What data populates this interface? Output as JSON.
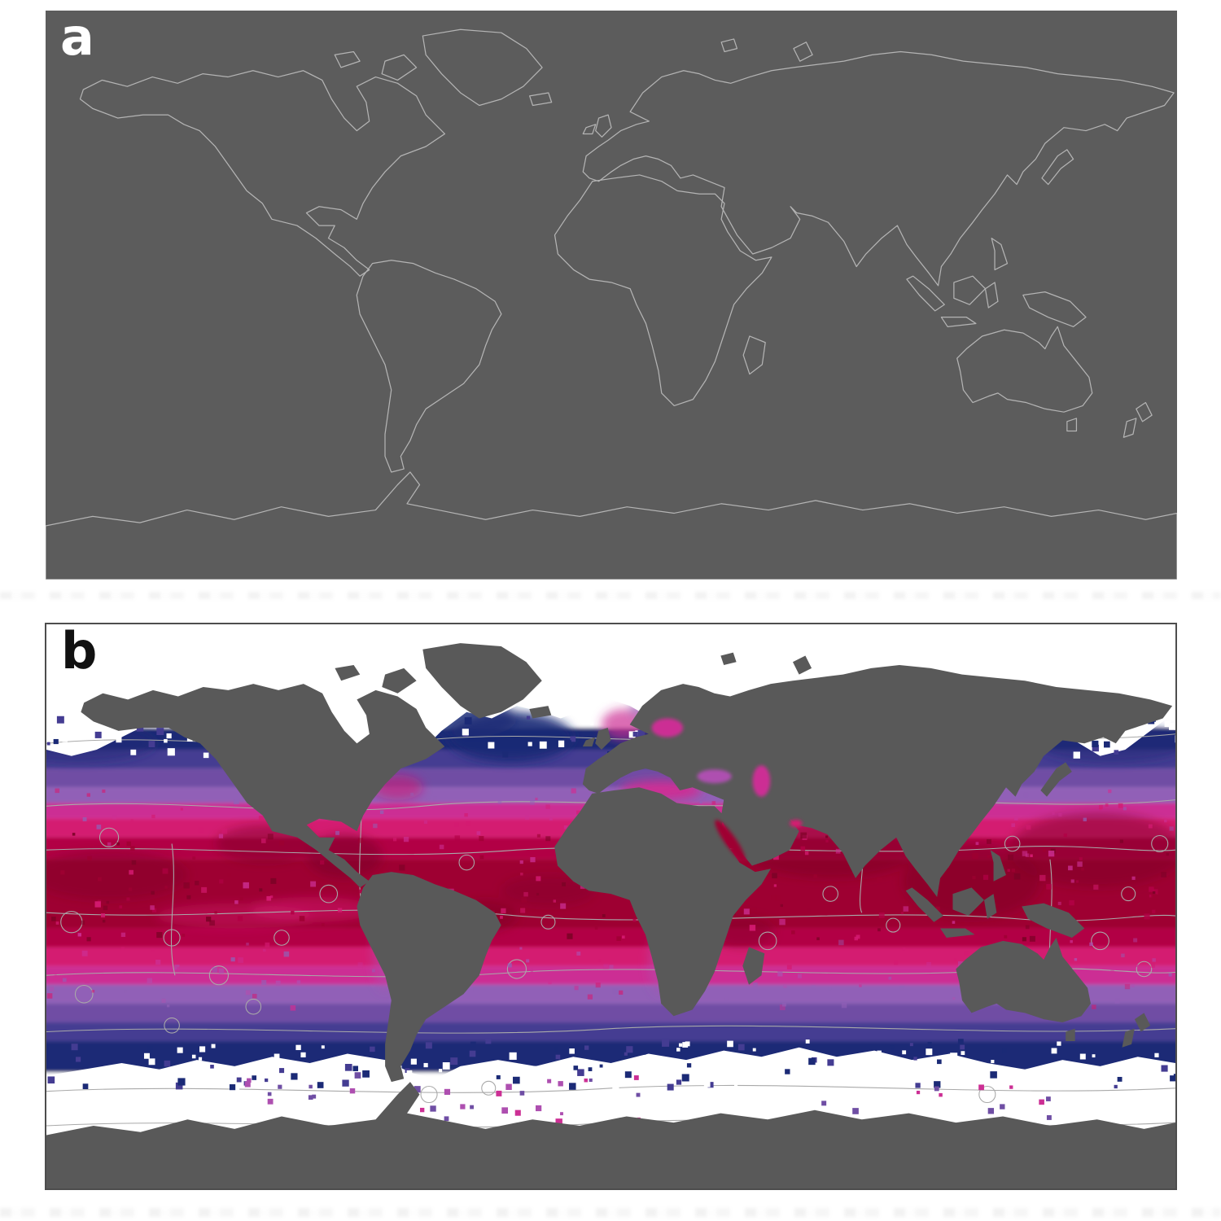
{
  "figure": {
    "panels": [
      {
        "id": "a",
        "label": "a",
        "content": "terrestrial-world-map"
      },
      {
        "id": "b",
        "label": "b",
        "content": "marine-world-map"
      }
    ]
  },
  "colors": {
    "page_background": "#ffffff",
    "panel_a_background": "#5c5c5c",
    "land_gray": "#595959",
    "coastline": "#b4b4b4",
    "border_line": "#9a9a9a",
    "ecoregion_line": "#a9a9a9",
    "panel_b_border": "#4d4d4d",
    "label_a": "#ffffff",
    "label_b": "#111111",
    "palette": {
      "no_data": "#ffffff",
      "navy": "#1b2a76",
      "indigo": "#443c92",
      "purple": "#6f4ea4",
      "violet": "#9160b7",
      "orchid": "#ae4fb0",
      "magenta": "#cc2f94",
      "deep_pink": "#d41a71",
      "crimson": "#b20045",
      "dark_red": "#9e0031",
      "darkest_red": "#7c0226"
    }
  }
}
